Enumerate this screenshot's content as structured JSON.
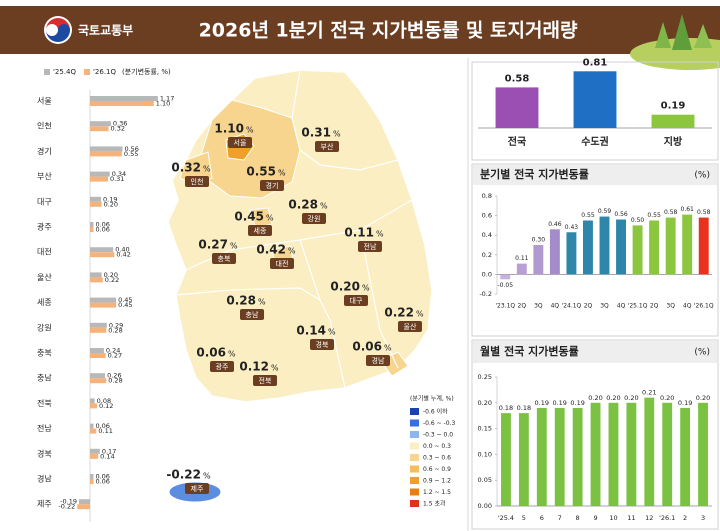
{
  "header": {
    "ministry": "국토교통부",
    "title": "2026년 1분기 전국 지가변동률 및 토지거래량"
  },
  "chart_data": [
    {
      "type": "hbar",
      "unit_label": "(분기변동률, %)",
      "categories": [
        "서울",
        "인천",
        "경기",
        "부산",
        "대구",
        "광주",
        "대전",
        "울산",
        "세종",
        "강원",
        "충북",
        "충남",
        "전북",
        "전남",
        "경북",
        "경남",
        "제주"
      ],
      "series": [
        {
          "name": "'25.4Q",
          "color": "#b8b8b8",
          "values": [
            1.17,
            0.36,
            0.56,
            0.34,
            0.19,
            0.06,
            0.4,
            0.2,
            0.45,
            0.29,
            0.24,
            0.26,
            0.08,
            0.06,
            0.17,
            0.06,
            -0.19
          ],
          "value_labels": [
            "1.17",
            "0.36",
            "0.56",
            "0.34",
            "0.19",
            "0.06",
            "0.40",
            "0.20",
            "0.45",
            "0.29",
            "0.24",
            "0.26",
            "0.08",
            "0.06",
            "0.17",
            "0.06",
            "-0.19"
          ]
        },
        {
          "name": "'26.1Q",
          "color": "#f5b27a",
          "values": [
            1.1,
            0.32,
            0.55,
            0.31,
            0.2,
            0.06,
            0.42,
            0.22,
            0.45,
            0.28,
            0.27,
            0.28,
            0.12,
            0.11,
            0.14,
            0.06,
            -0.22
          ],
          "value_labels": [
            "1.10",
            "0.32",
            "0.55",
            "0.31",
            "0.20",
            "0.06",
            "0.42",
            "0.22",
            "0.45",
            "0.28",
            "0.27",
            "0.28",
            "0.12",
            "0.11",
            "0.14",
            "0.06",
            "-0.22"
          ]
        }
      ]
    },
    {
      "type": "bar",
      "categories": [
        "전국",
        "수도권",
        "지방"
      ],
      "values": [
        0.58,
        0.81,
        0.19
      ],
      "colors": [
        "#9b4fb3",
        "#1f6fc4",
        "#8cc63f"
      ]
    },
    {
      "type": "bar",
      "title": "분기별 전국 지가변동률",
      "unit": "(%)",
      "categories": [
        "'23.1Q",
        "2Q",
        "3Q",
        "4Q",
        "'24.1Q",
        "2Q",
        "3Q",
        "4Q",
        "'25.1Q",
        "2Q",
        "3Q",
        "4Q",
        "'26.1Q"
      ],
      "values": [
        -0.05,
        0.11,
        0.3,
        0.46,
        0.43,
        0.55,
        0.59,
        0.56,
        0.5,
        0.55,
        0.58,
        0.61,
        0.58
      ],
      "value_labels": [
        "-0.05",
        "0.11",
        "0.30",
        "0.46",
        "0.43",
        "0.55",
        "0.59",
        "0.56",
        "0.50",
        "0.55",
        "0.58",
        "0.61",
        "0.58"
      ],
      "colors": [
        "#c7b2dc",
        "#b9a0d4",
        "#b09ad0",
        "#a48cc8",
        "#2e86ab",
        "#2e86ab",
        "#2e86ab",
        "#2e86ab",
        "#8cc63f",
        "#8cc63f",
        "#8cc63f",
        "#8cc63f",
        "#e8321e"
      ],
      "ylim": [
        -0.2,
        0.8
      ],
      "yticks": [
        -0.2,
        {
          "value": 0,
          "label": "0.0"
        },
        0.2,
        0.4,
        0.6,
        0.8
      ]
    },
    {
      "type": "bar",
      "title": "월별 전국 지가변동률",
      "unit": "(%)",
      "categories": [
        "'25.4",
        "5",
        "6",
        "7",
        "8",
        "9",
        "10",
        "11",
        "12",
        "'26.1",
        "2",
        "3"
      ],
      "values": [
        0.18,
        0.18,
        0.19,
        0.19,
        0.19,
        0.2,
        0.2,
        0.2,
        0.21,
        0.2,
        0.19,
        0.2
      ],
      "value_labels": [
        "0.18",
        "0.18",
        "0.19",
        "0.19",
        "0.19",
        "0.20",
        "0.20",
        "0.20",
        "0.21",
        "0.20",
        "0.19",
        "0.20"
      ],
      "color": "#7cc242",
      "ylim": [
        0,
        0.25
      ],
      "yticks": [
        {
          "value": 0,
          "label": "0.00"
        },
        0.05,
        {
          "value": 0.1,
          "label": "0.10"
        },
        0.15,
        {
          "value": 0.2,
          "label": "0.20"
        },
        0.25
      ]
    }
  ],
  "map": {
    "unit": "%",
    "legend_title": "(분기별 누계, %)",
    "legend": [
      {
        "label": "-0.6 이하",
        "color": "#1b3fb5"
      },
      {
        "label": "-0.6 ~ -0.3",
        "color": "#3a6fe0"
      },
      {
        "label": "-0.3 ~ 0.0",
        "color": "#8fb5f0"
      },
      {
        "label": "0.0 ~ 0.3",
        "color": "#fbeec2"
      },
      {
        "label": "0.3 ~ 0.6",
        "color": "#f8d58f"
      },
      {
        "label": "0.6 ~ 0.9",
        "color": "#f5bd5c"
      },
      {
        "label": "0.9 ~ 1.2",
        "color": "#f0a02a"
      },
      {
        "label": "1.2 ~ 1.5",
        "color": "#e67e16"
      },
      {
        "label": "1.5 초과",
        "color": "#e0301e"
      }
    ]
  }
}
